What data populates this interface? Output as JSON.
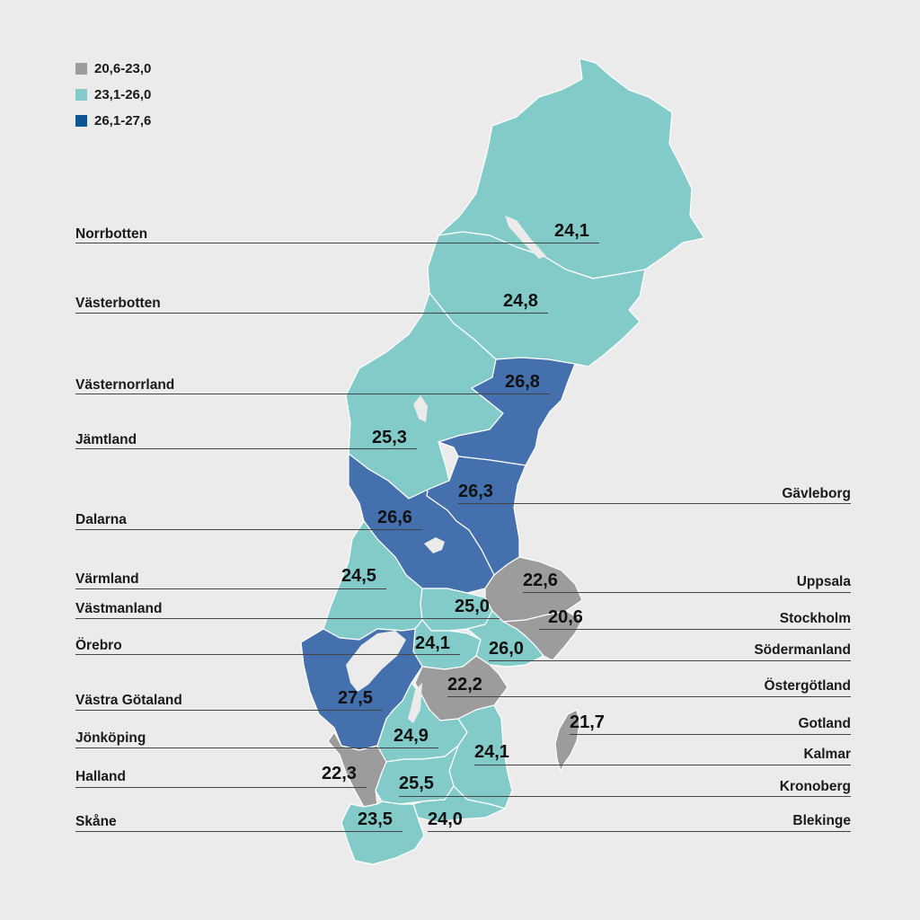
{
  "colors": {
    "background": "#ebebeb",
    "low": "#9c9c9c",
    "mid": "#83cbc9",
    "high": "#4470ad"
  },
  "legend": [
    {
      "label": "20,6-23,0",
      "color": "#9c9c9c"
    },
    {
      "label": "23,1-26,0",
      "color": "#83cbc9"
    },
    {
      "label": "26,1-27,6",
      "color": "#0d5596"
    }
  ],
  "regions": {
    "norrbotten": {
      "name": "Norrbotten",
      "value": "24,1",
      "class": "mid"
    },
    "vasterbotten": {
      "name": "Västerbotten",
      "value": "24,8",
      "class": "mid"
    },
    "vasternorrland": {
      "name": "Västernorrland",
      "value": "26,8",
      "class": "high"
    },
    "jamtland": {
      "name": "Jämtland",
      "value": "25,3",
      "class": "mid"
    },
    "gavleborg": {
      "name": "Gävleborg",
      "value": "26,3",
      "class": "high"
    },
    "dalarna": {
      "name": "Dalarna",
      "value": "26,6",
      "class": "high"
    },
    "varmland": {
      "name": "Värmland",
      "value": "24,5",
      "class": "mid"
    },
    "uppsala": {
      "name": "Uppsala",
      "value": "22,6",
      "class": "low"
    },
    "vastmanland": {
      "name": "Västmanland",
      "value": "25,0",
      "class": "mid"
    },
    "stockholm": {
      "name": "Stockholm",
      "value": "20,6",
      "class": "low"
    },
    "orebro": {
      "name": "Örebro",
      "value": "24,1",
      "class": "mid"
    },
    "sodermanland": {
      "name": "Södermanland",
      "value": "26,0",
      "class": "mid"
    },
    "ostergotland": {
      "name": "Östergötland",
      "value": "22,2",
      "class": "low"
    },
    "vastra_gotaland": {
      "name": "Västra Götaland",
      "value": "27,5",
      "class": "high"
    },
    "gotland": {
      "name": "Gotland",
      "value": "21,7",
      "class": "low"
    },
    "jonkoping": {
      "name": "Jönköping",
      "value": "24,9",
      "class": "mid"
    },
    "kalmar": {
      "name": "Kalmar",
      "value": "24,1",
      "class": "mid"
    },
    "halland": {
      "name": "Halland",
      "value": "22,3",
      "class": "low"
    },
    "kronoberg": {
      "name": "Kronoberg",
      "value": "25,5",
      "class": "mid"
    },
    "skane": {
      "name": "Skåne",
      "value": "23,5",
      "class": "mid"
    },
    "blekinge": {
      "name": "Blekinge",
      "value": "24,0",
      "class": "mid"
    }
  }
}
